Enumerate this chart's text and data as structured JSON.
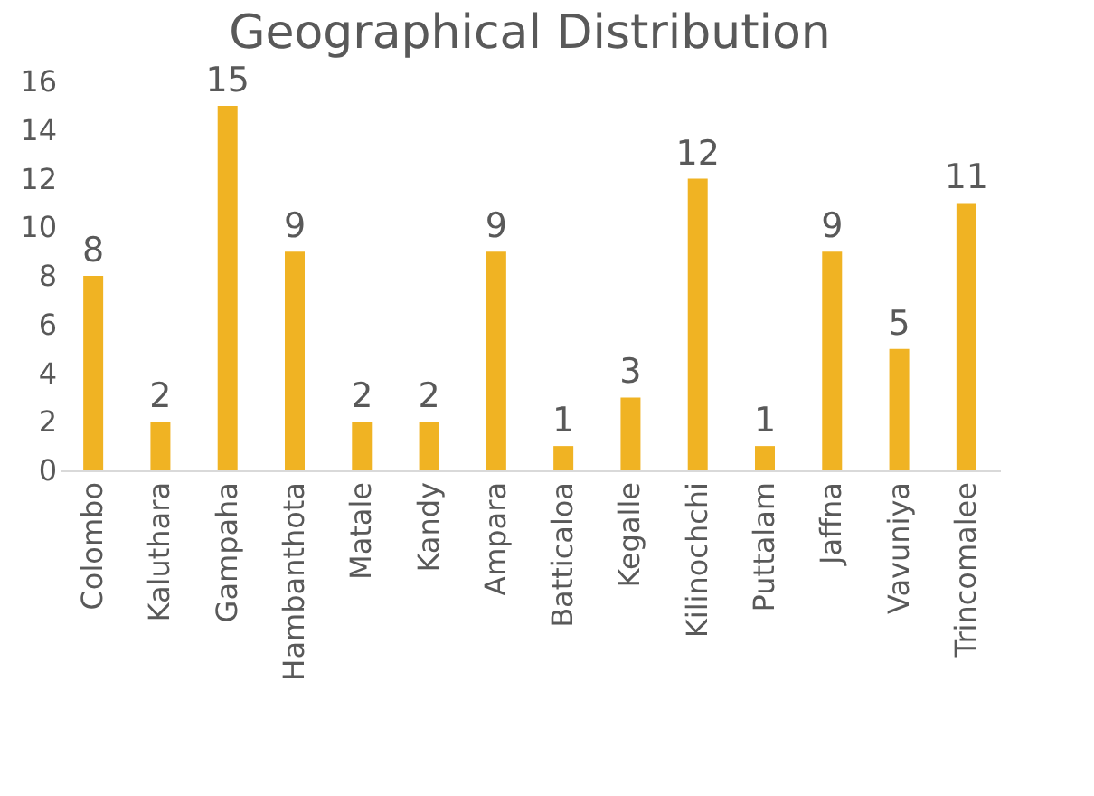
{
  "chart_data": {
    "type": "bar",
    "title": "Geographical Distribution",
    "categories": [
      "Colombo",
      "Kaluthara",
      "Gampaha",
      "Hambanthota",
      "Matale",
      "Kandy",
      "Ampara",
      "Batticaloa",
      "Kegalle",
      "Kilinochchi",
      "Puttalam",
      "Jaffna",
      "Vavuniya",
      "Trincomalee"
    ],
    "values": [
      8,
      2,
      15,
      9,
      2,
      2,
      9,
      1,
      3,
      12,
      1,
      9,
      5,
      11
    ],
    "color": "#f0b323",
    "ylim": [
      0,
      16
    ],
    "yticks": [
      0,
      2,
      4,
      6,
      8,
      10,
      12,
      14,
      16
    ],
    "data_labels": true,
    "grid": false
  }
}
